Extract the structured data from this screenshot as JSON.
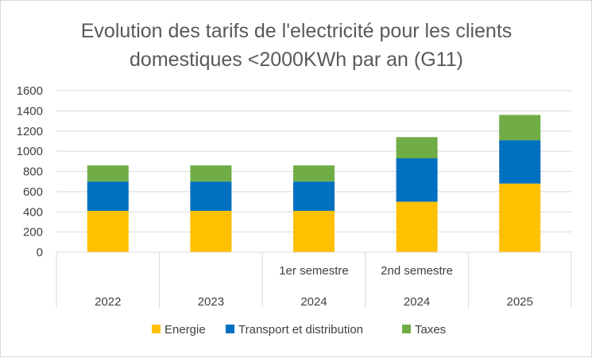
{
  "chart_data": {
    "type": "bar",
    "stacked": true,
    "title_lines": [
      "Evolution des tarifs de l'electricité pour les clients",
      "domestiques <2000KWh par an (G11)"
    ],
    "categories": [
      {
        "label": "2022",
        "sublabel": ""
      },
      {
        "label": "2023",
        "sublabel": ""
      },
      {
        "label": "2024",
        "sublabel": "1er semestre"
      },
      {
        "label": "2024",
        "sublabel": "2nd semestre"
      },
      {
        "label": "2025",
        "sublabel": ""
      }
    ],
    "series": [
      {
        "name": "Energie",
        "color": "#FFC000",
        "values": [
          410,
          410,
          410,
          500,
          680
        ]
      },
      {
        "name": "Transport et distribution",
        "color": "#0070C0",
        "values": [
          290,
          290,
          290,
          430,
          430
        ]
      },
      {
        "name": "Taxes",
        "color": "#70AD47",
        "values": [
          160,
          160,
          160,
          210,
          250
        ]
      }
    ],
    "ylim": [
      0,
      1600
    ],
    "yticks": [
      0,
      200,
      400,
      600,
      800,
      1000,
      1200,
      1400,
      1600
    ],
    "grid": true,
    "legend_position": "bottom"
  }
}
